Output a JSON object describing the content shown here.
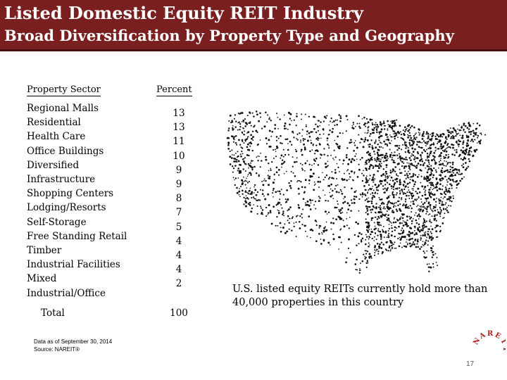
{
  "slide": {
    "title": "Listed Domestic Equity REIT Industry",
    "subtitle": "Broad Diversification by Property Type and Geography",
    "page_number": "17",
    "header_color": "#7a1f1f"
  },
  "table": {
    "sector_header": "Property Sector",
    "percent_header": "Percent",
    "rows": [
      {
        "sector": "Regional Malls",
        "percent": "13"
      },
      {
        "sector": "Residential",
        "percent": "13"
      },
      {
        "sector": "Health Care",
        "percent": "11"
      },
      {
        "sector": "Office Buildings",
        "percent": "10"
      },
      {
        "sector": "Diversified",
        "percent": "9"
      },
      {
        "sector": "Infrastructure",
        "percent": "9"
      },
      {
        "sector": "Shopping Centers",
        "percent": "8"
      },
      {
        "sector": "Lodging/Resorts",
        "percent": "7"
      },
      {
        "sector": "Self-Storage",
        "percent": "5"
      },
      {
        "sector": "Free Standing Retail",
        "percent": "4"
      },
      {
        "sector": "Timber",
        "percent": "4"
      },
      {
        "sector": "Industrial Facilities",
        "percent": "4"
      },
      {
        "sector": "Mixed Industrial/Office",
        "percent": "2"
      }
    ],
    "total_label": "Total",
    "total_value": "100"
  },
  "note": {
    "line1": "Data as of September 30, 2014",
    "line2": "Source: NAREIT®"
  },
  "map": {
    "caption": "U.S. listed equity REITs currently hold more than 40,000 properties in this country",
    "dot_color": "#111111"
  },
  "logo": {
    "text": "NAREIT",
    "color": "#b22222"
  }
}
